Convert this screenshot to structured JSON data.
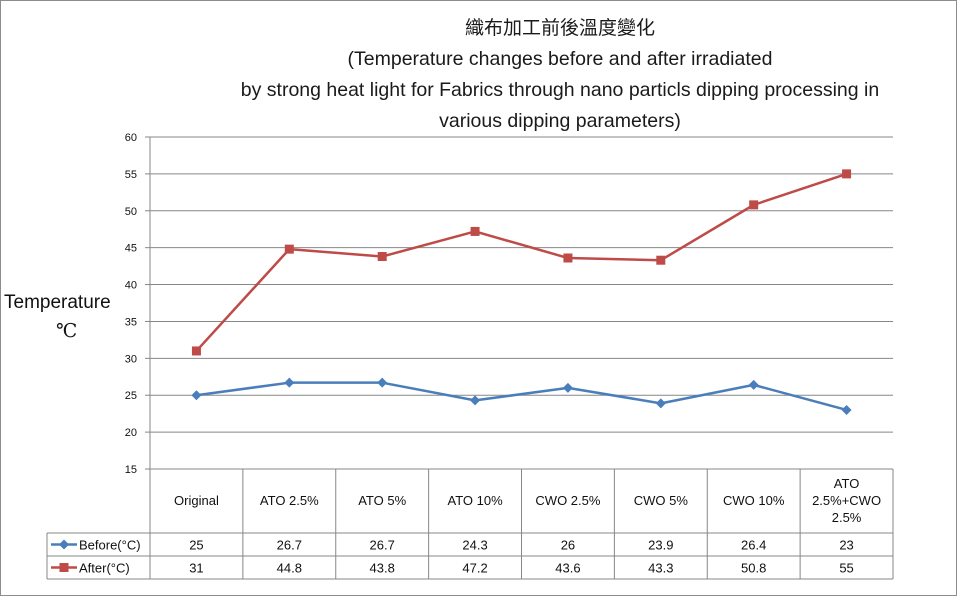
{
  "chart_data": {
    "type": "line",
    "title": "織布加工前後溫度變化",
    "subtitle_lines": [
      "(Temperature changes before and after irradiated",
      "by strong heat light for  Fabrics through nano particls  dipping processing in",
      "various dipping parameters)"
    ],
    "ylabel": "Temperature",
    "ylabel_unit": "℃",
    "ylim": [
      15,
      60
    ],
    "yticks": [
      "15",
      "20",
      "25",
      "30",
      "35",
      "40",
      "45",
      "50",
      "55",
      "60"
    ],
    "grid": true,
    "categories": [
      "Original",
      "ATO   2.5%",
      "ATO   5%",
      "ATO  10%",
      "CWO   2.5%",
      "CWO   5%",
      "CWO  10%",
      "ATO 2.5%+CWO 2.5%"
    ],
    "category_lines": [
      [
        "Original"
      ],
      [
        "ATO   2.5%"
      ],
      [
        "ATO   5%"
      ],
      [
        "ATO  10%"
      ],
      [
        "CWO   2.5%"
      ],
      [
        "CWO   5%"
      ],
      [
        "CWO  10%"
      ],
      [
        "ATO",
        "2.5%+CWO",
        "2.5%"
      ]
    ],
    "series": [
      {
        "name": "Before(°C)",
        "color": "#4a7ebb",
        "marker": "diamond",
        "values": [
          25,
          26.7,
          26.7,
          24.3,
          26,
          23.9,
          26.4,
          23
        ],
        "labels": [
          "25",
          "26.7",
          "26.7",
          "24.3",
          "26",
          "23.9",
          "26.4",
          "23"
        ]
      },
      {
        "name": "After(°C)",
        "color": "#be4b48",
        "marker": "square",
        "values": [
          31,
          44.8,
          43.8,
          47.2,
          43.6,
          43.3,
          50.8,
          55
        ],
        "labels": [
          "31",
          "44.8",
          "43.8",
          "47.2",
          "43.6",
          "43.3",
          "50.8",
          "55"
        ]
      }
    ],
    "legend": "data-table"
  }
}
